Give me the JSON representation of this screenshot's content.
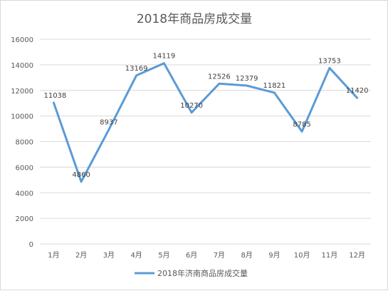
{
  "chart_data": {
    "type": "line",
    "title": "2018年商品房成交量",
    "categories": [
      "1月",
      "2月",
      "3月",
      "4月",
      "5月",
      "6月",
      "7月",
      "8月",
      "9月",
      "10月",
      "11月",
      "12月"
    ],
    "series": [
      {
        "name": "2018年济南商品房成交量",
        "values": [
          11038,
          4860,
          8937,
          13169,
          14119,
          10270,
          12526,
          12379,
          11821,
          8785,
          13753,
          11420
        ],
        "color": "#5b9bd5"
      }
    ],
    "ylim": [
      0,
      16000
    ],
    "yticks": [
      0,
      2000,
      4000,
      6000,
      8000,
      10000,
      12000,
      14000,
      16000
    ],
    "grid": true,
    "legend": "bottom"
  }
}
